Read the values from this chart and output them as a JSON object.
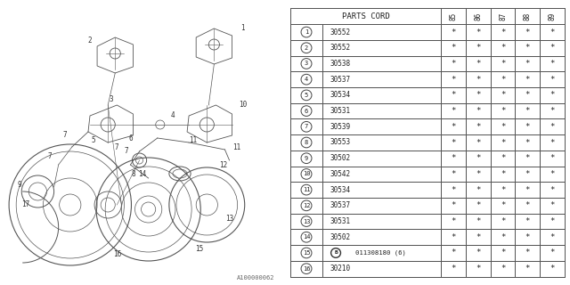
{
  "table_header_text": "PARTS CORD",
  "years": [
    "85",
    "86",
    "87",
    "88",
    "89"
  ],
  "rows": [
    {
      "num": "1",
      "code": "30552",
      "bold_circle": false
    },
    {
      "num": "2",
      "code": "30552",
      "bold_circle": false
    },
    {
      "num": "3",
      "code": "30538",
      "bold_circle": false
    },
    {
      "num": "4",
      "code": "30537",
      "bold_circle": false
    },
    {
      "num": "5",
      "code": "30534",
      "bold_circle": false
    },
    {
      "num": "6",
      "code": "30531",
      "bold_circle": false
    },
    {
      "num": "7",
      "code": "30539",
      "bold_circle": false
    },
    {
      "num": "8",
      "code": "30553",
      "bold_circle": false
    },
    {
      "num": "9",
      "code": "30502",
      "bold_circle": false
    },
    {
      "num": "10",
      "code": "30542",
      "bold_circle": false
    },
    {
      "num": "11",
      "code": "30534",
      "bold_circle": false
    },
    {
      "num": "12",
      "code": "30537",
      "bold_circle": false
    },
    {
      "num": "13",
      "code": "30531",
      "bold_circle": false
    },
    {
      "num": "14",
      "code": "30502",
      "bold_circle": false
    },
    {
      "num": "15",
      "code": "011308180 (6)",
      "bold_circle": true
    },
    {
      "num": "16",
      "code": "30210",
      "bold_circle": false
    }
  ],
  "diagram_label": "A100000062",
  "bg_color": "#ffffff",
  "line_color": "#555555",
  "text_color": "#333333"
}
